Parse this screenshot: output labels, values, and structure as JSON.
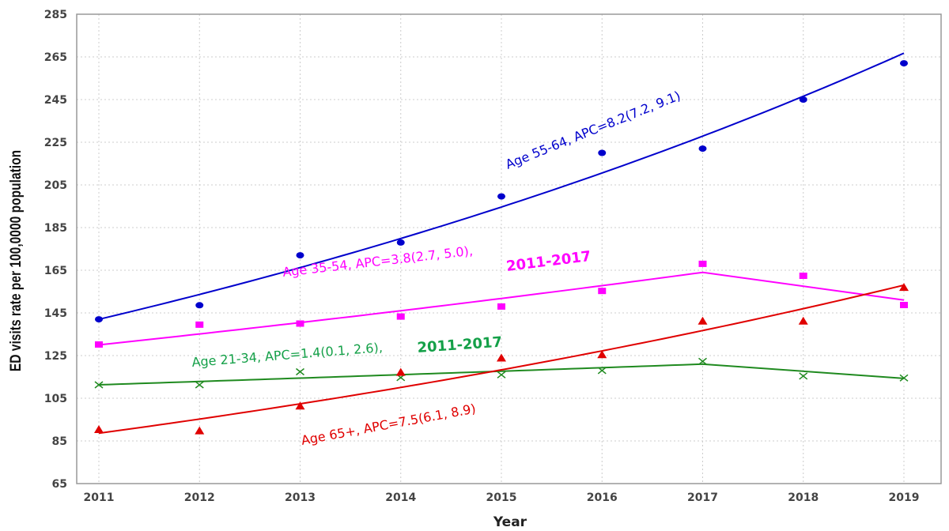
{
  "chart_data": {
    "type": "line",
    "title": "",
    "xlabel": "Year",
    "ylabel": "ED visits rate per 100,0000 population",
    "x": [
      2011,
      2012,
      2013,
      2014,
      2015,
      2016,
      2017,
      2018,
      2019
    ],
    "xticks": [
      "2011",
      "2012",
      "2013",
      "2014",
      "2015",
      "2016",
      "2017",
      "2018",
      "2019"
    ],
    "ylim": [
      65,
      285
    ],
    "yticks": [
      "65",
      "85",
      "105",
      "125",
      "145",
      "165",
      "185",
      "205",
      "225",
      "245",
      "265",
      "285"
    ],
    "grid": true,
    "series": [
      {
        "name": "Age 55-64",
        "color": "#0000cc",
        "marker": "circle",
        "values": [
          142,
          148.6,
          172,
          178,
          199.6,
          220,
          222,
          245,
          262
        ],
        "fit_x": [
          2011,
          2019
        ],
        "fit_model": "exponential",
        "fit_start": 142,
        "apc": 8.2
      },
      {
        "name": "Age 35-54",
        "color": "#ff00ff",
        "marker": "square",
        "values": [
          130.2,
          139.5,
          140,
          143.3,
          148,
          155.3,
          168,
          162.4,
          148.7
        ],
        "fit_x": [
          2011,
          2017,
          2019
        ],
        "fit_model": "joinpoint",
        "fit_start": 130,
        "fit_joint": 164,
        "fit_end": 151,
        "apc": 3.8
      },
      {
        "name": "Age 21-34",
        "color": "#1f8a1f",
        "marker": "x",
        "values": [
          111.3,
          111.3,
          117.4,
          114.7,
          116,
          118,
          122.3,
          115.4,
          114.5
        ],
        "fit_x": [
          2011,
          2017,
          2019
        ],
        "fit_model": "joinpoint",
        "fit_start": 111.3,
        "fit_joint": 121,
        "fit_end": 114.3,
        "apc": 1.4
      },
      {
        "name": "Age 65+",
        "color": "#e00000",
        "marker": "triangle",
        "values": [
          90.2,
          89.6,
          101.2,
          117,
          123.7,
          125.3,
          141,
          141,
          156.8
        ],
        "fit_x": [
          2011,
          2019
        ],
        "fit_model": "exponential",
        "fit_start": 88.6,
        "apc": 7.5
      }
    ],
    "annotations": [
      {
        "text": "Age 55-64, APC=8.2(7.2, 9.1)",
        "color": "#0000cc"
      },
      {
        "text": "Age 35-54, APC=3.8(2.7, 5.0),",
        "color": "#ff00ff"
      },
      {
        "text": "2011-2017",
        "color": "#ff00ff",
        "bold": true
      },
      {
        "text": "Age 21-34, APC=1.4(0.1, 2.6),",
        "color": "#14a048"
      },
      {
        "text": "2011-2017",
        "color": "#14a048",
        "bold": true
      },
      {
        "text": "Age 65+, APC=7.5(6.1, 8.9)",
        "color": "#e00000"
      }
    ]
  }
}
